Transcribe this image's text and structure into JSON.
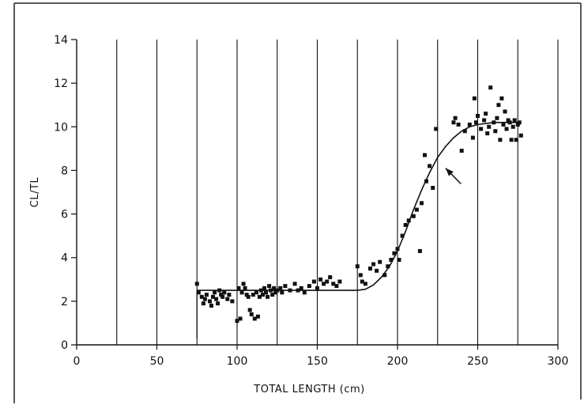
{
  "chart_data": {
    "type": "scatter",
    "title": "",
    "xlabel": "TOTAL LENGTH (cm)",
    "ylabel": "CL/TL",
    "xlim": [
      0,
      300
    ],
    "ylim": [
      0,
      14
    ],
    "x_ticks": [
      0,
      50,
      100,
      150,
      200,
      250,
      300
    ],
    "y_ticks": [
      0,
      2,
      4,
      6,
      8,
      10,
      12,
      14
    ],
    "x_tick_labels": [
      "0",
      "50",
      "100",
      "150",
      "200",
      "250",
      "300"
    ],
    "y_tick_labels": [
      "0",
      "2",
      "4",
      "6",
      "8",
      "10",
      "12",
      "14"
    ],
    "grid_vertical_x": [
      25,
      50,
      75,
      100,
      125,
      150,
      175,
      200,
      225,
      250,
      275
    ],
    "grid_horizontal": false,
    "series": [
      {
        "type": "scatter",
        "points": [
          [
            75,
            2.8
          ],
          [
            76,
            2.4
          ],
          [
            78,
            2.2
          ],
          [
            79,
            1.9
          ],
          [
            80,
            2.1
          ],
          [
            81,
            2.3
          ],
          [
            83,
            2.0
          ],
          [
            84,
            1.8
          ],
          [
            85,
            2.2
          ],
          [
            86,
            2.4
          ],
          [
            87,
            2.1
          ],
          [
            88,
            1.9
          ],
          [
            89,
            2.5
          ],
          [
            90,
            2.3
          ],
          [
            91,
            2.2
          ],
          [
            92,
            2.4
          ],
          [
            94,
            2.1
          ],
          [
            95,
            2.3
          ],
          [
            97,
            2.0
          ],
          [
            100,
            1.1
          ],
          [
            101,
            2.6
          ],
          [
            102,
            1.2
          ],
          [
            103,
            2.4
          ],
          [
            104,
            2.8
          ],
          [
            105,
            2.6
          ],
          [
            106,
            2.3
          ],
          [
            107,
            2.2
          ],
          [
            108,
            1.6
          ],
          [
            109,
            1.4
          ],
          [
            110,
            2.3
          ],
          [
            111,
            1.2
          ],
          [
            112,
            2.4
          ],
          [
            113,
            1.3
          ],
          [
            114,
            2.2
          ],
          [
            115,
            2.5
          ],
          [
            116,
            2.3
          ],
          [
            117,
            2.6
          ],
          [
            118,
            2.4
          ],
          [
            119,
            2.2
          ],
          [
            120,
            2.7
          ],
          [
            121,
            2.5
          ],
          [
            122,
            2.3
          ],
          [
            123,
            2.6
          ],
          [
            124,
            2.4
          ],
          [
            125,
            2.5
          ],
          [
            127,
            2.6
          ],
          [
            128,
            2.4
          ],
          [
            130,
            2.7
          ],
          [
            133,
            2.5
          ],
          [
            136,
            2.8
          ],
          [
            138,
            2.5
          ],
          [
            140,
            2.6
          ],
          [
            142,
            2.4
          ],
          [
            145,
            2.7
          ],
          [
            148,
            2.9
          ],
          [
            150,
            2.6
          ],
          [
            152,
            3.0
          ],
          [
            154,
            2.8
          ],
          [
            156,
            2.9
          ],
          [
            158,
            3.1
          ],
          [
            160,
            2.8
          ],
          [
            162,
            2.7
          ],
          [
            164,
            2.9
          ],
          [
            175,
            3.6
          ],
          [
            177,
            3.2
          ],
          [
            178,
            2.9
          ],
          [
            180,
            2.8
          ],
          [
            183,
            3.5
          ],
          [
            185,
            3.7
          ],
          [
            187,
            3.4
          ],
          [
            189,
            3.8
          ],
          [
            192,
            3.2
          ],
          [
            194,
            3.6
          ],
          [
            196,
            3.9
          ],
          [
            198,
            4.2
          ],
          [
            200,
            4.4
          ],
          [
            201,
            3.9
          ],
          [
            203,
            5.0
          ],
          [
            205,
            5.5
          ],
          [
            207,
            5.7
          ],
          [
            210,
            5.9
          ],
          [
            212,
            6.2
          ],
          [
            214,
            4.3
          ],
          [
            215,
            6.5
          ],
          [
            217,
            8.7
          ],
          [
            218,
            7.5
          ],
          [
            220,
            8.2
          ],
          [
            222,
            7.2
          ],
          [
            224,
            9.9
          ],
          [
            235,
            10.2
          ],
          [
            236,
            10.4
          ],
          [
            238,
            10.1
          ],
          [
            240,
            8.9
          ],
          [
            242,
            9.8
          ],
          [
            245,
            10.1
          ],
          [
            247,
            9.5
          ],
          [
            248,
            11.3
          ],
          [
            249,
            10.2
          ],
          [
            250,
            10.5
          ],
          [
            252,
            9.9
          ],
          [
            254,
            10.3
          ],
          [
            255,
            10.6
          ],
          [
            256,
            9.7
          ],
          [
            257,
            10.0
          ],
          [
            258,
            11.8
          ],
          [
            260,
            10.2
          ],
          [
            261,
            9.8
          ],
          [
            262,
            10.4
          ],
          [
            263,
            11.0
          ],
          [
            264,
            9.4
          ],
          [
            265,
            11.3
          ],
          [
            266,
            10.1
          ],
          [
            267,
            10.7
          ],
          [
            268,
            9.9
          ],
          [
            269,
            10.3
          ],
          [
            270,
            10.2
          ],
          [
            271,
            9.4
          ],
          [
            272,
            10.0
          ],
          [
            273,
            10.3
          ],
          [
            274,
            9.4
          ],
          [
            275,
            10.1
          ],
          [
            276,
            10.2
          ],
          [
            277,
            9.6
          ]
        ]
      },
      {
        "type": "line",
        "points": [
          [
            75,
            2.5
          ],
          [
            120,
            2.5
          ],
          [
            165,
            2.5
          ],
          [
            175,
            2.5
          ],
          [
            180,
            2.55
          ],
          [
            185,
            2.75
          ],
          [
            190,
            3.1
          ],
          [
            195,
            3.6
          ],
          [
            200,
            4.3
          ],
          [
            205,
            5.2
          ],
          [
            210,
            6.2
          ],
          [
            215,
            7.1
          ],
          [
            220,
            7.9
          ],
          [
            225,
            8.6
          ],
          [
            230,
            9.1
          ],
          [
            235,
            9.5
          ],
          [
            240,
            9.8
          ],
          [
            245,
            10.0
          ],
          [
            250,
            10.1
          ],
          [
            260,
            10.2
          ],
          [
            270,
            10.2
          ],
          [
            276,
            10.2
          ]
        ]
      },
      {
        "type": "vertical-line",
        "x": 75,
        "y_range": [
          0.3,
          2.5
        ]
      }
    ],
    "annotations": [
      {
        "type": "arrow",
        "from": [
          234,
          7.8
        ],
        "to": [
          230,
          8.1
        ]
      }
    ]
  }
}
